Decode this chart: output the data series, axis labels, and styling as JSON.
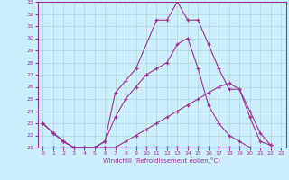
{
  "xlabel": "Windchill (Refroidissement éolien,°C)",
  "bg_color": "#cceeff",
  "line_color": "#993399",
  "xlim": [
    -0.5,
    23.5
  ],
  "ylim": [
    21,
    33
  ],
  "xticks": [
    0,
    1,
    2,
    3,
    4,
    5,
    6,
    7,
    8,
    9,
    10,
    11,
    12,
    13,
    14,
    15,
    16,
    17,
    18,
    19,
    20,
    21,
    22,
    23
  ],
  "yticks": [
    21,
    22,
    23,
    24,
    25,
    26,
    27,
    28,
    29,
    30,
    31,
    32,
    33
  ],
  "series": [
    {
      "x": [
        0,
        1,
        2,
        3,
        4,
        5,
        6,
        7,
        8,
        9,
        10,
        11,
        12,
        13,
        14,
        15,
        16,
        17,
        18,
        19,
        20,
        21,
        22,
        23
      ],
      "y": [
        21.0,
        21.0,
        21.0,
        21.0,
        21.0,
        21.0,
        21.0,
        21.0,
        21.0,
        21.0,
        21.0,
        21.0,
        21.0,
        21.0,
        21.0,
        21.0,
        21.0,
        21.0,
        21.0,
        21.0,
        null,
        null,
        null,
        null
      ]
    },
    {
      "x": [
        0,
        1,
        2,
        3,
        4,
        5,
        6,
        7,
        8,
        9,
        10,
        11,
        12,
        13,
        14,
        15,
        16,
        17,
        18,
        19,
        20,
        21,
        22,
        23
      ],
      "y": [
        23.0,
        22.2,
        21.5,
        21.0,
        21.0,
        21.0,
        21.0,
        21.0,
        21.5,
        22.0,
        22.5,
        23.0,
        23.5,
        24.0,
        24.5,
        25.0,
        25.5,
        26.0,
        26.3,
        25.8,
        23.5,
        21.5,
        21.2,
        null
      ]
    },
    {
      "x": [
        0,
        1,
        2,
        3,
        4,
        5,
        6,
        7,
        8,
        9,
        10,
        11,
        12,
        13,
        14,
        15,
        16,
        17,
        18,
        19,
        20,
        21,
        22,
        23
      ],
      "y": [
        23.0,
        22.2,
        21.5,
        21.0,
        21.0,
        21.0,
        21.5,
        23.5,
        25.0,
        26.0,
        27.0,
        27.5,
        28.0,
        29.5,
        30.0,
        27.5,
        24.5,
        23.0,
        22.0,
        21.5,
        21.0,
        null,
        null,
        null
      ]
    },
    {
      "x": [
        0,
        1,
        2,
        3,
        4,
        5,
        6,
        7,
        8,
        9,
        10,
        11,
        12,
        13,
        14,
        15,
        16,
        17,
        18,
        19,
        20,
        21,
        22,
        23
      ],
      "y": [
        23.0,
        22.2,
        21.5,
        21.0,
        21.0,
        21.0,
        21.5,
        25.5,
        26.5,
        27.5,
        null,
        31.5,
        31.5,
        33.0,
        31.5,
        31.5,
        29.5,
        27.5,
        25.8,
        25.8,
        24.0,
        22.2,
        21.2,
        null
      ]
    }
  ]
}
